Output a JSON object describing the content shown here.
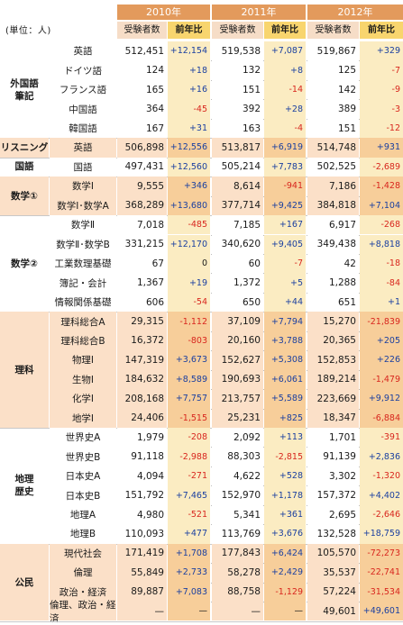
{
  "unit_label": "(単位：人)",
  "years": [
    "2010年",
    "2011年",
    "2012年"
  ],
  "col_headers": {
    "count": "受験者数",
    "diff": "前年比"
  },
  "groups": [
    {
      "line1": "外国語",
      "line2": "筆記",
      "first": 0,
      "count": 5,
      "highlight": false
    },
    {
      "line1": "リスニング",
      "line2": "",
      "first": 5,
      "count": 1,
      "highlight": true
    },
    {
      "line1": "国語",
      "line2": "",
      "first": 6,
      "count": 1,
      "highlight": false
    },
    {
      "line1": "数学①",
      "line2": "",
      "first": 7,
      "count": 2,
      "highlight": true
    },
    {
      "line1": "数学②",
      "line2": "",
      "first": 9,
      "count": 5,
      "highlight": false
    },
    {
      "line1": "理科",
      "line2": "",
      "first": 14,
      "count": 6,
      "highlight": true
    },
    {
      "line1": "地理",
      "line2": "歴史",
      "first": 20,
      "count": 6,
      "highlight": false
    },
    {
      "line1": "公民",
      "line2": "",
      "first": 26,
      "count": 4,
      "highlight": true
    }
  ],
  "rows": [
    {
      "subject": "英語",
      "v": [
        [
          "512,451",
          "+12,154"
        ],
        [
          "519,538",
          "+7,087"
        ],
        [
          "519,867",
          "+329"
        ]
      ]
    },
    {
      "subject": "ドイツ語",
      "v": [
        [
          "124",
          "+18"
        ],
        [
          "132",
          "+8"
        ],
        [
          "125",
          "-7"
        ]
      ]
    },
    {
      "subject": "フランス語",
      "v": [
        [
          "165",
          "+16"
        ],
        [
          "151",
          "-14"
        ],
        [
          "142",
          "-9"
        ]
      ]
    },
    {
      "subject": "中国語",
      "v": [
        [
          "364",
          "-45"
        ],
        [
          "392",
          "+28"
        ],
        [
          "389",
          "-3"
        ]
      ]
    },
    {
      "subject": "韓国語",
      "v": [
        [
          "167",
          "+31"
        ],
        [
          "163",
          "-4"
        ],
        [
          "151",
          "-12"
        ]
      ]
    },
    {
      "subject": "英語",
      "v": [
        [
          "506,898",
          "+12,556"
        ],
        [
          "513,817",
          "+6,919"
        ],
        [
          "514,748",
          "+931"
        ]
      ]
    },
    {
      "subject": "国語",
      "v": [
        [
          "497,431",
          "+12,560"
        ],
        [
          "505,214",
          "+7,783"
        ],
        [
          "502,525",
          "-2,689"
        ]
      ]
    },
    {
      "subject": "数学Ⅰ",
      "v": [
        [
          "9,555",
          "+346"
        ],
        [
          "8,614",
          "-941"
        ],
        [
          "7,186",
          "-1,428"
        ]
      ]
    },
    {
      "subject": "数学Ⅰ･数学A",
      "v": [
        [
          "368,289",
          "+13,680"
        ],
        [
          "377,714",
          "+9,425"
        ],
        [
          "384,818",
          "+7,104"
        ]
      ]
    },
    {
      "subject": "数学Ⅱ",
      "v": [
        [
          "7,018",
          "-485"
        ],
        [
          "7,185",
          "+167"
        ],
        [
          "6,917",
          "-268"
        ]
      ]
    },
    {
      "subject": "数学Ⅱ･数学B",
      "v": [
        [
          "331,215",
          "+12,170"
        ],
        [
          "340,620",
          "+9,405"
        ],
        [
          "349,438",
          "+8,818"
        ]
      ]
    },
    {
      "subject": "工業数理基礎",
      "v": [
        [
          "67",
          "0"
        ],
        [
          "60",
          "-7"
        ],
        [
          "42",
          "-18"
        ]
      ]
    },
    {
      "subject": "簿記・会計",
      "v": [
        [
          "1,367",
          "+19"
        ],
        [
          "1,372",
          "+5"
        ],
        [
          "1,288",
          "-84"
        ]
      ]
    },
    {
      "subject": "情報関係基礎",
      "v": [
        [
          "606",
          "-54"
        ],
        [
          "650",
          "+44"
        ],
        [
          "651",
          "+1"
        ]
      ]
    },
    {
      "subject": "理科総合A",
      "v": [
        [
          "29,315",
          "-1,112"
        ],
        [
          "37,109",
          "+7,794"
        ],
        [
          "15,270",
          "-21,839"
        ]
      ]
    },
    {
      "subject": "理科総合B",
      "v": [
        [
          "16,372",
          "-803"
        ],
        [
          "20,160",
          "+3,788"
        ],
        [
          "20,365",
          "+205"
        ]
      ]
    },
    {
      "subject": "物理Ⅰ",
      "v": [
        [
          "147,319",
          "+3,673"
        ],
        [
          "152,627",
          "+5,308"
        ],
        [
          "152,853",
          "+226"
        ]
      ]
    },
    {
      "subject": "生物Ⅰ",
      "v": [
        [
          "184,632",
          "+8,589"
        ],
        [
          "190,693",
          "+6,061"
        ],
        [
          "189,214",
          "-1,479"
        ]
      ]
    },
    {
      "subject": "化学Ⅰ",
      "v": [
        [
          "208,168",
          "+7,757"
        ],
        [
          "213,757",
          "+5,589"
        ],
        [
          "223,669",
          "+9,912"
        ]
      ]
    },
    {
      "subject": "地学Ⅰ",
      "v": [
        [
          "24,406",
          "-1,515"
        ],
        [
          "25,231",
          "+825"
        ],
        [
          "18,347",
          "-6,884"
        ]
      ]
    },
    {
      "subject": "世界史A",
      "v": [
        [
          "1,979",
          "-208"
        ],
        [
          "2,092",
          "+113"
        ],
        [
          "1,701",
          "-391"
        ]
      ]
    },
    {
      "subject": "世界史B",
      "v": [
        [
          "91,118",
          "-2,988"
        ],
        [
          "88,303",
          "-2,815"
        ],
        [
          "91,139",
          "+2,836"
        ]
      ]
    },
    {
      "subject": "日本史A",
      "v": [
        [
          "4,094",
          "-271"
        ],
        [
          "4,622",
          "+528"
        ],
        [
          "3,302",
          "-1,320"
        ]
      ]
    },
    {
      "subject": "日本史B",
      "v": [
        [
          "151,792",
          "+7,465"
        ],
        [
          "152,970",
          "+1,178"
        ],
        [
          "157,372",
          "+4,402"
        ]
      ]
    },
    {
      "subject": "地理A",
      "v": [
        [
          "4,980",
          "-521"
        ],
        [
          "5,341",
          "+361"
        ],
        [
          "2,695",
          "-2,646"
        ]
      ]
    },
    {
      "subject": "地理B",
      "v": [
        [
          "110,093",
          "+477"
        ],
        [
          "113,769",
          "+3,676"
        ],
        [
          "132,528",
          "+18,759"
        ]
      ]
    },
    {
      "subject": "現代社会",
      "v": [
        [
          "171,419",
          "+1,708"
        ],
        [
          "177,843",
          "+6,424"
        ],
        [
          "105,570",
          "-72,273"
        ]
      ]
    },
    {
      "subject": "倫理",
      "v": [
        [
          "55,849",
          "+2,733"
        ],
        [
          "58,278",
          "+2,429"
        ],
        [
          "35,537",
          "-22,741"
        ]
      ]
    },
    {
      "subject": "政治・経済",
      "v": [
        [
          "89,887",
          "+7,083"
        ],
        [
          "88,758",
          "-1,129"
        ],
        [
          "57,224",
          "-31,534"
        ]
      ]
    },
    {
      "subject": "倫理、政治・経済",
      "v": [
        [
          "—",
          "—"
        ],
        [
          "—",
          "—"
        ],
        [
          "49,601",
          "+49,601"
        ]
      ]
    }
  ],
  "colors": {
    "positive": "#1a3fa0",
    "negative": "#d8261e",
    "year_header": "#e39a5c",
    "diff_header": "#f8d56e"
  }
}
